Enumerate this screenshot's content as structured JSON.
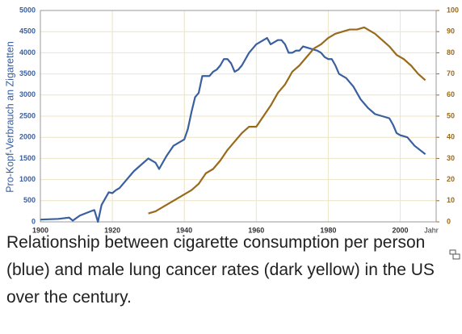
{
  "chart_data": {
    "type": "line",
    "y_label": "Pro-Kopf-Verbrauch an Zigaretten",
    "x_label": "Jahr",
    "caption": "Relationship between cigarette consumption per person (blue) and male lung cancer rates (dark yellow) in the US over the century.",
    "xlim": [
      1900,
      2010
    ],
    "xticks": [
      1900,
      1920,
      1940,
      1960,
      1980,
      2000
    ],
    "ylim": [
      0,
      5000
    ],
    "yticks": [
      0,
      500,
      1000,
      1500,
      2000,
      2500,
      3000,
      3500,
      4000,
      4500,
      5000
    ],
    "y2lim": [
      0,
      100
    ],
    "y2ticks": [
      0,
      10,
      20,
      30,
      40,
      50,
      60,
      70,
      80,
      90,
      100
    ],
    "grid": true,
    "series": [
      {
        "color": "#3a5fa0",
        "axis": "y",
        "x": [
          1900,
          1905,
          1908,
          1909,
          1911,
          1914,
          1915,
          1916,
          1917,
          1918,
          1919,
          1920,
          1921,
          1922,
          1924,
          1926,
          1928,
          1930,
          1932,
          1933,
          1934,
          1935,
          1937,
          1938,
          1940,
          1941,
          1942,
          1943,
          1944,
          1945,
          1946,
          1947,
          1948,
          1949,
          1950,
          1951,
          1952,
          1953,
          1954,
          1955,
          1956,
          1957,
          1958,
          1960,
          1961,
          1963,
          1964,
          1965,
          1966,
          1967,
          1968,
          1969,
          1970,
          1971,
          1972,
          1973,
          1975,
          1977,
          1978,
          1979,
          1980,
          1981,
          1982,
          1983,
          1985,
          1987,
          1989,
          1991,
          1993,
          1995,
          1997,
          1998,
          1999,
          2000,
          2002,
          2004,
          2007
        ],
        "values": [
          54,
          70,
          100,
          30,
          150,
          250,
          280,
          0,
          400,
          550,
          700,
          680,
          750,
          800,
          1000,
          1200,
          1350,
          1500,
          1400,
          1250,
          1400,
          1550,
          1800,
          1850,
          1950,
          2200,
          2600,
          2950,
          3050,
          3450,
          3450,
          3450,
          3550,
          3600,
          3700,
          3850,
          3850,
          3750,
          3550,
          3600,
          3700,
          3850,
          4000,
          4200,
          4250,
          4350,
          4200,
          4250,
          4300,
          4300,
          4200,
          4000,
          4000,
          4050,
          4050,
          4150,
          4100,
          4050,
          4000,
          3900,
          3850,
          3850,
          3700,
          3500,
          3400,
          3200,
          2900,
          2700,
          2550,
          2500,
          2450,
          2300,
          2100,
          2050,
          2000,
          1800,
          1600
        ]
      },
      {
        "color": "#9a6a1c",
        "axis": "y2",
        "x": [
          1930,
          1932,
          1934,
          1936,
          1938,
          1940,
          1942,
          1944,
          1946,
          1948,
          1950,
          1952,
          1954,
          1956,
          1958,
          1960,
          1962,
          1964,
          1966,
          1968,
          1970,
          1972,
          1974,
          1976,
          1978,
          1980,
          1982,
          1984,
          1986,
          1988,
          1990,
          1991,
          1993,
          1995,
          1997,
          1999,
          2001,
          2003,
          2005,
          2007
        ],
        "values": [
          4,
          5,
          7,
          9,
          11,
          13,
          15,
          18,
          23,
          25,
          29,
          34,
          38,
          42,
          45,
          45,
          50,
          55,
          61,
          65,
          71,
          74,
          78,
          82,
          84,
          87,
          89,
          90,
          91,
          91,
          92,
          91,
          89,
          86,
          83,
          79,
          77,
          74,
          70,
          67
        ]
      }
    ]
  }
}
